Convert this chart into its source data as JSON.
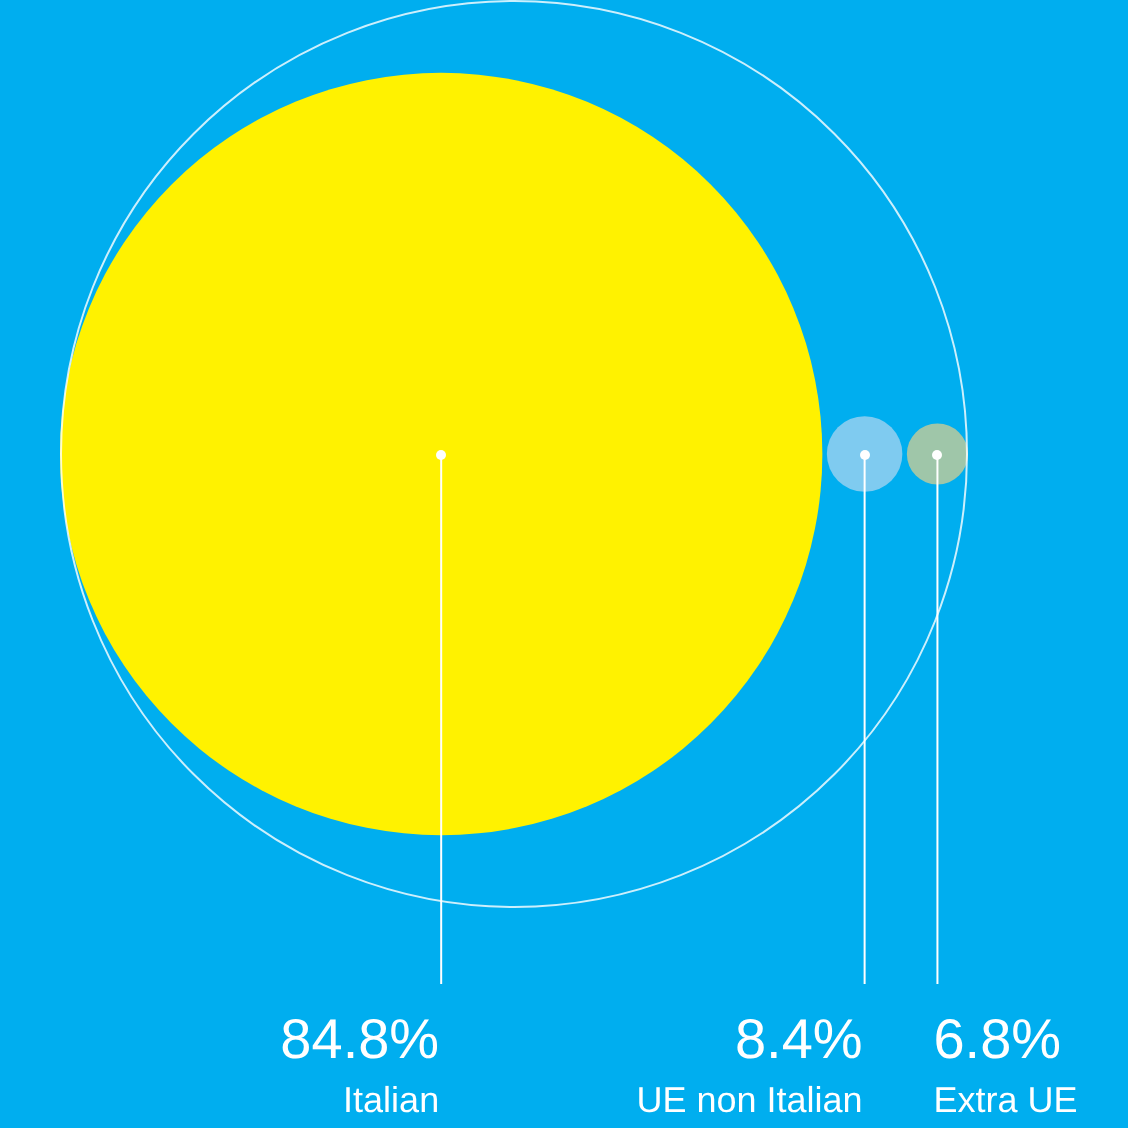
{
  "chart_data": {
    "type": "other",
    "categories": [
      "Italian",
      "UE non Italian",
      "Extra UE"
    ],
    "values": [
      84.8,
      8.4,
      6.8
    ],
    "colors": [
      "#fff200",
      "#7fcbf0",
      "#9fc6a9"
    ],
    "value_labels": [
      "84.8%",
      "8.4%",
      "6.8%"
    ]
  }
}
